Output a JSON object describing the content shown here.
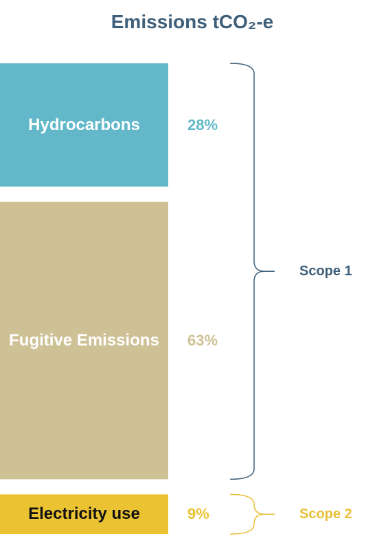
{
  "chart_data": {
    "type": "stacked-column",
    "title": "Emissions tCO₂-e",
    "categories": [
      "Hydrocarbons",
      "Fugitive Emissions",
      "Electricity use"
    ],
    "values": [
      28,
      63,
      9
    ],
    "value_labels": [
      "28%",
      "63%",
      "9%"
    ],
    "colors": [
      "#62b8c9",
      "#cfc196",
      "#ebc232"
    ],
    "label_colors": [
      "#ffffff",
      "#ffffff",
      "#111111"
    ],
    "groups": [
      {
        "name": "Scope 1",
        "color": "#3e5f7a",
        "members": [
          0,
          1
        ]
      },
      {
        "name": "Scope 2",
        "color": "#e8bf38",
        "members": [
          2
        ]
      }
    ]
  }
}
